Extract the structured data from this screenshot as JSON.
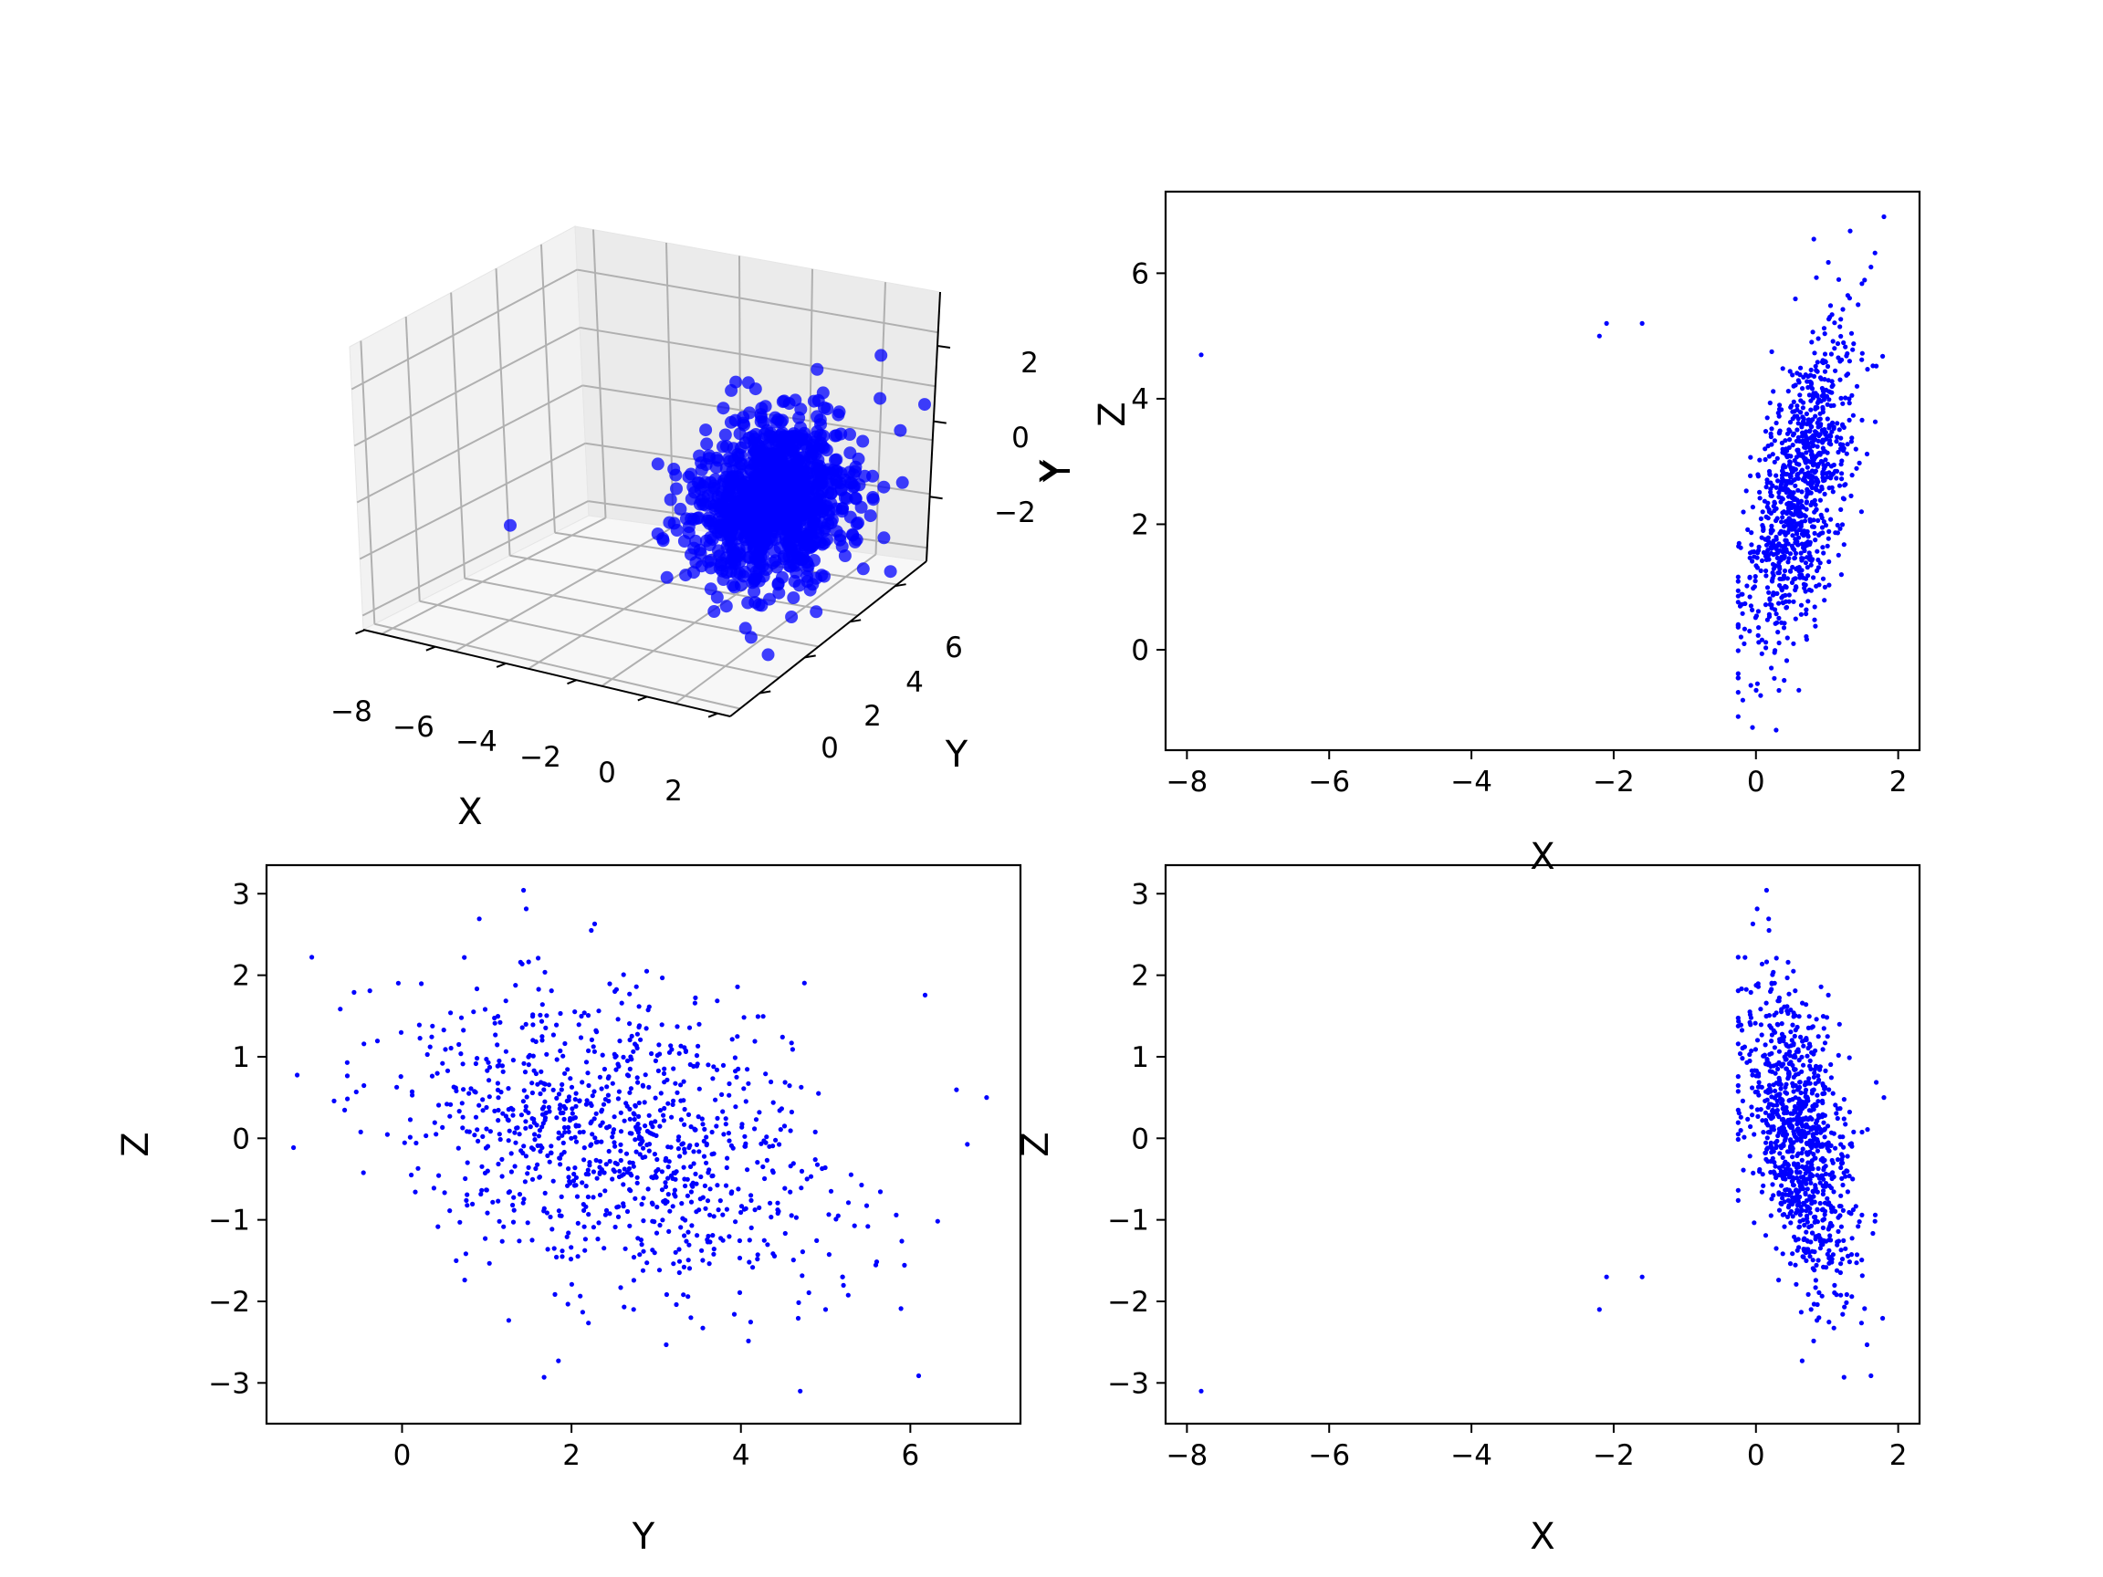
{
  "colors": {
    "points": "#0000ff",
    "pane_left": "#f2f2f2",
    "pane_right": "#ebebeb",
    "pane_floor": "#f7f7f7",
    "grid": "#b0b0b0"
  },
  "chart_data": [
    {
      "id": "xyz-3d",
      "type": "scatter",
      "title": "",
      "projection": "3d",
      "xlabel": "X",
      "ylabel": "Y",
      "zlabel": "",
      "xticks": [
        "−8",
        "−6",
        "−4",
        "−2",
        "0",
        "2"
      ],
      "yticks": [
        "0",
        "2",
        "4",
        "6"
      ],
      "zticks": [
        "2",
        "0",
        "−2"
      ],
      "xlim": [
        -8,
        2
      ],
      "ylim": [
        -1,
        7
      ],
      "zlim": [
        -3,
        3
      ],
      "point_cloud": {
        "n_points": 1000,
        "x_mean": 0.6,
        "x_std": 0.4,
        "y_mean": 2.5,
        "y_std": 1.3,
        "z_mean": 0.0,
        "z_std": 1.0
      },
      "outliers": [
        {
          "x": -7.8,
          "y": 4.7,
          "z": -3.1
        },
        {
          "x": -2.2,
          "y": 5.0,
          "z": -2.1
        },
        {
          "x": -2.1,
          "y": 5.2,
          "z": -1.7
        },
        {
          "x": -1.6,
          "y": 5.2,
          "z": -1.7
        },
        {
          "x": 1.8,
          "y": 6.9,
          "z": 0.5
        }
      ],
      "grid": true
    },
    {
      "id": "x-vs-y",
      "type": "scatter",
      "title": "",
      "xlabel": "X",
      "ylabel": "Y",
      "overlapping_label": "Z",
      "xticks": [
        -8,
        -6,
        -4,
        -2,
        0,
        2
      ],
      "yticks": [
        0,
        2,
        4,
        6
      ],
      "xlim": [
        -8.3,
        2.3
      ],
      "ylim": [
        -1.6,
        7.3
      ],
      "grid": false
    },
    {
      "id": "y-vs-z",
      "type": "scatter",
      "title": "",
      "xlabel": "Y",
      "ylabel": "Z",
      "xticks": [
        0,
        2,
        4,
        6
      ],
      "yticks": [
        -3,
        -2,
        -1,
        0,
        1,
        2,
        3
      ],
      "xlim": [
        -1.6,
        7.3
      ],
      "ylim": [
        -3.5,
        3.35
      ],
      "grid": false
    },
    {
      "id": "x-vs-z",
      "type": "scatter",
      "title": "",
      "xlabel": "X",
      "ylabel": "Z",
      "xticks": [
        -8,
        -6,
        -4,
        -2,
        0,
        2
      ],
      "yticks": [
        -3,
        -2,
        -1,
        0,
        1,
        2,
        3
      ],
      "xlim": [
        -8.3,
        2.3
      ],
      "ylim": [
        -3.5,
        3.35
      ],
      "grid": false
    }
  ]
}
